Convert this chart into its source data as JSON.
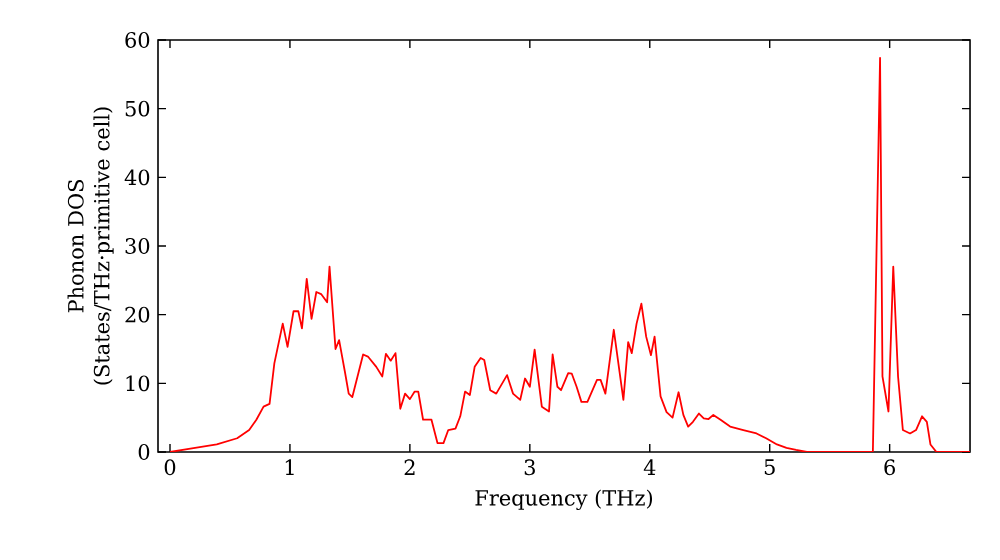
{
  "chart_data": {
    "type": "line",
    "xlabel": "Frequency (THz)",
    "ylabel": "Phonon DOS (States/THz·primitive cell)",
    "xlim": [
      -0.1,
      6.67
    ],
    "ylim": [
      0,
      60
    ],
    "xticks": [
      0,
      1,
      2,
      3,
      4,
      5,
      6
    ],
    "yticks": [
      0,
      10,
      20,
      30,
      40,
      50,
      60
    ],
    "grid": false,
    "marker": "none",
    "line_style": "solid",
    "series": [
      {
        "color": "#ff0000",
        "x": [
          0,
          0.17,
          0.39,
          0.56,
          0.66,
          0.72,
          0.78,
          0.83,
          0.87,
          0.94,
          0.98,
          1.03,
          1.07,
          1.1,
          1.14,
          1.18,
          1.22,
          1.26,
          1.31,
          1.33,
          1.38,
          1.41,
          1.46,
          1.49,
          1.52,
          1.61,
          1.65,
          1.72,
          1.77,
          1.8,
          1.84,
          1.88,
          1.92,
          1.96,
          2.0,
          2.04,
          2.07,
          2.11,
          2.18,
          2.23,
          2.28,
          2.32,
          2.38,
          2.42,
          2.46,
          2.5,
          2.54,
          2.59,
          2.62,
          2.67,
          2.72,
          2.81,
          2.86,
          2.92,
          2.96,
          3.0,
          3.04,
          3.1,
          3.16,
          3.19,
          3.23,
          3.26,
          3.32,
          3.35,
          3.39,
          3.43,
          3.48,
          3.56,
          3.59,
          3.63,
          3.7,
          3.78,
          3.82,
          3.85,
          3.89,
          3.93,
          3.97,
          4.01,
          4.04,
          4.09,
          4.14,
          4.19,
          4.24,
          4.28,
          4.32,
          4.36,
          4.41,
          4.45,
          4.49,
          4.53,
          4.59,
          4.67,
          4.78,
          4.89,
          4.97,
          5.06,
          5.14,
          5.22,
          5.31,
          5.86,
          5.92,
          5.94,
          5.99,
          6.03,
          6.07,
          6.11,
          6.17,
          6.22,
          6.27,
          6.31,
          6.34,
          6.39,
          6.67
        ],
        "values": [
          0,
          0.5,
          1.1,
          2,
          3.2,
          4.7,
          6.6,
          7,
          12.9,
          18.7,
          15.3,
          20.5,
          20.5,
          18,
          25.2,
          19.4,
          23.3,
          23,
          21.8,
          27,
          15,
          16.3,
          11.5,
          8.5,
          8,
          14.2,
          13.9,
          12.4,
          11,
          14.3,
          13.3,
          14.4,
          6.3,
          8.5,
          7.7,
          8.8,
          8.8,
          4.7,
          4.7,
          1.3,
          1.3,
          3.2,
          3.4,
          5.2,
          8.8,
          8.3,
          12.4,
          13.7,
          13.4,
          9,
          8.5,
          11.2,
          8.5,
          7.6,
          10.7,
          9.5,
          14.9,
          6.6,
          5.9,
          14.2,
          9.5,
          9,
          11.5,
          11.4,
          9.5,
          7.3,
          7.3,
          10.5,
          10.5,
          8.5,
          17.8,
          7.6,
          16,
          14.4,
          18.7,
          21.6,
          16.8,
          14.1,
          16.8,
          8.1,
          5.8,
          5,
          8.7,
          5.4,
          3.7,
          4.4,
          5.6,
          4.9,
          4.8,
          5.4,
          4.7,
          3.7,
          3.2,
          2.7,
          2,
          1.1,
          0.6,
          0.3,
          0,
          0,
          57.4,
          11,
          5.9,
          27,
          11,
          3.2,
          2.7,
          3.2,
          5.2,
          4.4,
          1.1,
          0,
          0
        ]
      }
    ]
  }
}
